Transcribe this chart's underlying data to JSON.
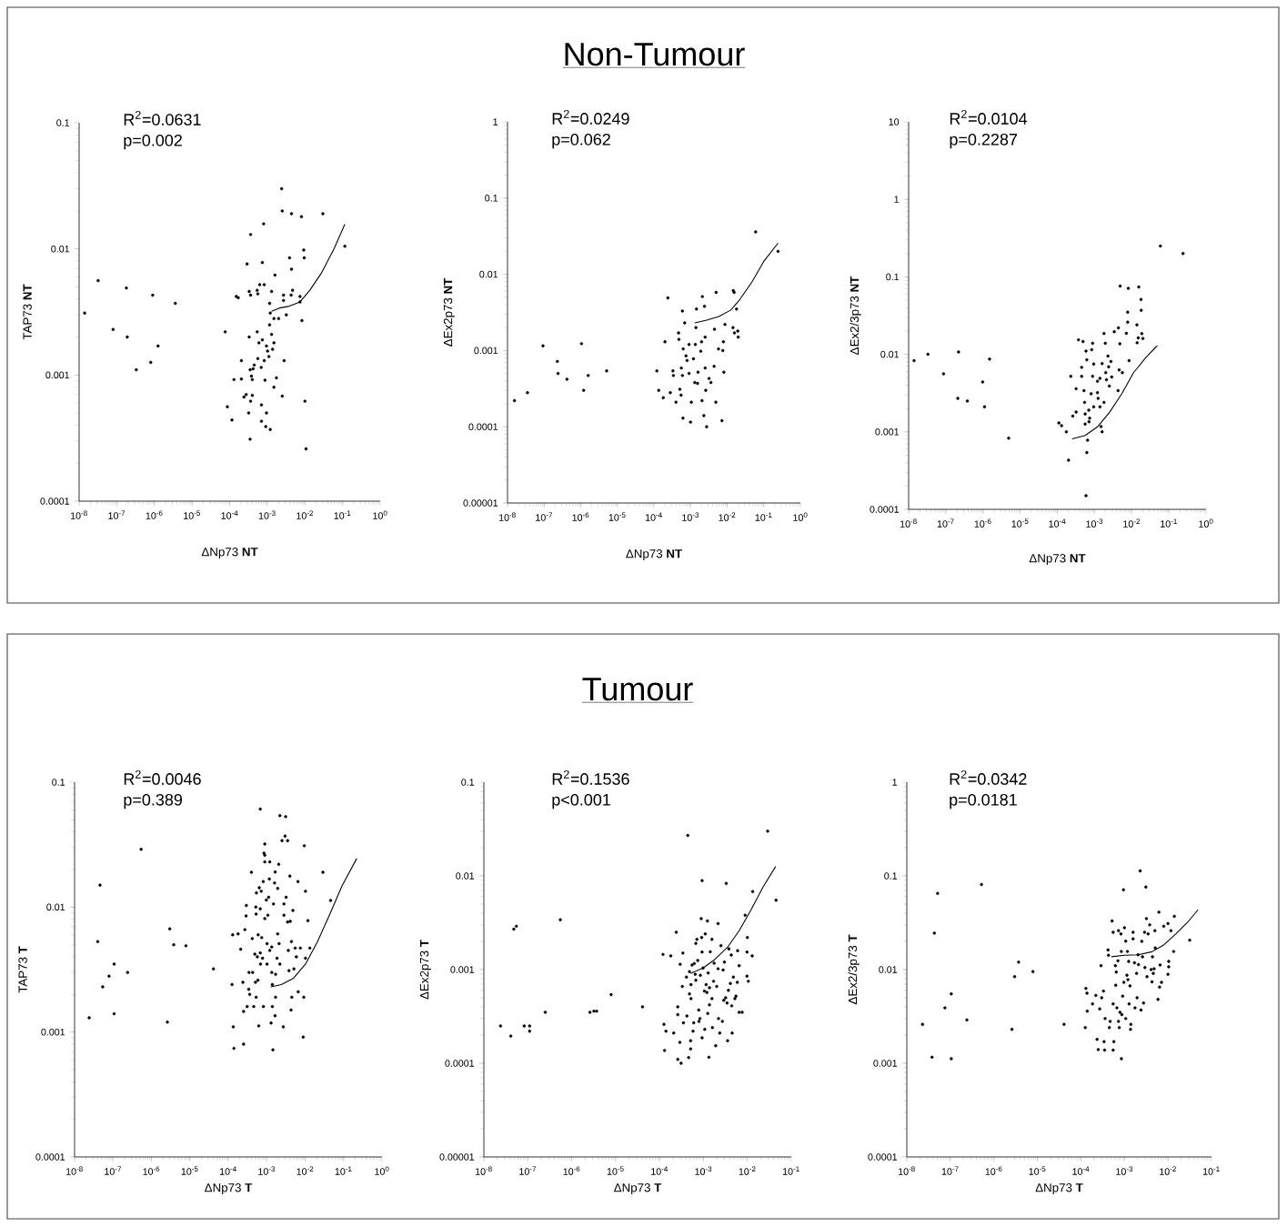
{
  "chart_data": [
    {
      "type": "scatter",
      "xlabel": "ΔNp73 **NT**",
      "ylabel": "TAP73 **NT**",
      "annotations": [
        "R$^{2}$=0.0631",
        "p=0.002"
      ],
      "log": "xy",
      "xlim": [
        1e-08,
        1
      ],
      "ylim": [
        0.0001,
        0.1
      ],
      "xticks": [
        {
          "value": 1e-08,
          "label": "10$^{-8}$"
        },
        {
          "value": 1e-07,
          "label": "10$^{-7}$"
        },
        {
          "value": 1e-06,
          "label": "10$^{-6}$"
        },
        {
          "value": 1e-05,
          "label": "10$^{-5}$"
        },
        {
          "value": 0.0001,
          "label": "10$^{-4}$"
        },
        {
          "value": 0.001,
          "label": "10$^{-3}$"
        },
        {
          "value": 0.01,
          "label": "10$^{-2}$"
        },
        {
          "value": 0.1,
          "label": "10$^{-1}$"
        },
        {
          "value": 1,
          "label": "10$^{0}$"
        }
      ],
      "yticks": [
        0.0001,
        0.001,
        0.01,
        0.1
      ],
      "series": [
        {
          "marker": "circle",
          "color": "#000000",
          "x": [
            1.4e-08,
            3.2e-08,
            8e-08,
            1.8e-07,
            1.9e-07,
            3.3e-07,
            8e-07,
            9e-07,
            1.25e-06,
            3.6e-06,
            7.6e-05,
            8.7e-05,
            0.000115,
            0.00013,
            0.00015,
            0.00017,
            0.000205,
            0.000205,
            0.00024,
            0.000275,
            0.00029,
            0.00032,
            0.00033,
            0.00033,
            0.00035,
            0.00035,
            0.00036,
            0.00036,
            0.00036,
            0.00038,
            0.0004,
            0.0004,
            0.00042,
            0.00045,
            0.00054,
            0.00056,
            0.00054,
            0.00056,
            0.00063,
            0.0006,
            0.00069,
            0.0007,
            0.0007,
            0.00074,
            0.00074,
            0.0008,
            0.00083,
            0.00087,
            0.00083,
            0.00091,
            0.00095,
            0.00095,
            0.00102,
            0.0011,
            0.00115,
            0.00115,
            0.0012,
            0.0012,
            0.0013,
            0.0013,
            0.00138,
            0.0015,
            0.0015,
            0.0015,
            0.0016,
            0.00175,
            0.002,
            0.0024,
            0.0025,
            0.0025,
            0.0027,
            0.0027,
            0.0028,
            0.0032,
            0.0039,
            0.0044,
            0.0044,
            0.0047,
            0.0043,
            0.0074,
            0.0074,
            0.0081,
            0.0083,
            0.0093,
            0.0096,
            0.01,
            0.0107,
            0.03,
            0.115
          ],
          "values": [
            0.0031,
            0.0056,
            0.0023,
            0.0049,
            0.002,
            0.0011,
            0.00126,
            0.0043,
            0.0017,
            0.0037,
            0.0022,
            0.00056,
            0.00044,
            0.00092,
            0.0042,
            0.0041,
            0.0013,
            0.00093,
            0.00067,
            0.0007,
            0.0076,
            0.0005,
            0.0046,
            0.002,
            0.0011,
            0.00031,
            0.00062,
            0.013,
            0.0043,
            0.00098,
            0.00069,
            0.00092,
            0.00112,
            0.0012,
            0.0047,
            0.0044,
            0.0022,
            0.00135,
            0.0052,
            0.0018,
            0.00115,
            0.00058,
            0.00043,
            0.0078,
            0.0019,
            0.0158,
            0.0052,
            0.00091,
            0.0013,
            0.00039,
            0.0005,
            0.0017,
            0.00155,
            0.0014,
            0.0037,
            0.0025,
            0.0031,
            0.00037,
            0.0046,
            0.0021,
            0.0016,
            0.0008,
            0.0018,
            0.0028,
            0.0062,
            0.00095,
            0.0028,
            0.03,
            0.02,
            0.00068,
            0.0043,
            0.0039,
            0.0013,
            0.003,
            0.0085,
            0.019,
            0.0069,
            0.0047,
            0.0043,
            0.0042,
            0.0038,
            0.018,
            0.0027,
            0.0098,
            0.0085,
            0.00062,
            0.00026,
            0.019,
            0.0105
          ]
        },
        {
          "type": "line",
          "color": "#000000",
          "x": [
            0.0013,
            0.0021,
            0.0036,
            0.0074,
            0.0135,
            0.028,
            0.059,
            0.115
          ],
          "values": [
            0.0032,
            0.0034,
            0.0035,
            0.0038,
            0.0047,
            0.0065,
            0.01,
            0.0157
          ]
        }
      ]
    },
    {
      "type": "scatter",
      "title": "Non-Tumour",
      "xlabel": "ΔNp73 **NT**",
      "ylabel": "ΔEx2p73 **NT**",
      "annotations": [
        "R$^{2}$=0.0249",
        "p=0.062"
      ],
      "log": "xy",
      "xlim": [
        1e-08,
        1
      ],
      "ylim": [
        1e-05,
        1
      ],
      "xticks": [
        {
          "value": 1e-08,
          "label": "10$^{-8}$"
        },
        {
          "value": 1e-07,
          "label": "10$^{-7}$"
        },
        {
          "value": 1e-06,
          "label": "10$^{-6}$"
        },
        {
          "value": 1e-05,
          "label": "10$^{-5}$"
        },
        {
          "value": 0.0001,
          "label": "10$^{-4}$"
        },
        {
          "value": 0.001,
          "label": "10$^{-3}$"
        },
        {
          "value": 0.01,
          "label": "10$^{-2}$"
        },
        {
          "value": 0.1,
          "label": "10$^{-1}$"
        },
        {
          "value": 1,
          "label": "10$^{0}$"
        }
      ],
      "yticks": [
        {
          "value": 1e-05,
          "label": "0.00001"
        },
        0.0001,
        0.001,
        0.01,
        0.1,
        1
      ],
      "series": [
        {
          "marker": "circle",
          "color": "#000000",
          "x": [
            1.55e-08,
            3.5e-08,
            9.3e-08,
            2.3e-07,
            2.4e-07,
            4.2e-07,
            1.05e-06,
            1.2e-06,
            1.6e-06,
            5.1e-06,
            0.00012,
            0.000135,
            0.00018,
            0.0002,
            0.00024,
            0.00028,
            0.00033,
            0.00034,
            0.0004,
            0.00047,
            0.00048,
            0.00051,
            0.00055,
            0.00056,
            0.0006,
            0.00062,
            0.0006,
            0.00063,
            0.00069,
            0.00075,
            0.0008,
            0.00091,
            0.00091,
            0.001,
            0.00105,
            0.0012,
            0.0013,
            0.00135,
            0.0014,
            0.00145,
            0.00155,
            0.0016,
            0.0019,
            0.002,
            0.00205,
            0.0021,
            0.0023,
            0.0024,
            0.0025,
            0.0025,
            0.0026,
            0.00275,
            0.0032,
            0.0036,
            0.0044,
            0.0045,
            0.0049,
            0.005,
            0.0058,
            0.0072,
            0.0076,
            0.0079,
            0.0081,
            0.0087,
            0.0144,
            0.0147,
            0.0155,
            0.0158,
            0.018,
            0.0195,
            0.02,
            0.06,
            0.245
          ],
          "values": [
            0.00022,
            0.00028,
            0.00115,
            0.00072,
            0.0005,
            0.00042,
            0.00123,
            0.0003,
            0.00047,
            0.00054,
            0.00054,
            0.0003,
            0.00024,
            0.0013,
            0.0049,
            0.00028,
            0.00054,
            0.00047,
            0.00021,
            0.0017,
            0.0014,
            0.00031,
            0.00026,
            0.00059,
            0.0033,
            0.00013,
            0.00047,
            0.00105,
            0.0023,
            0.00085,
            0.00074,
            0.0012,
            0.0005,
            0.000115,
            0.00021,
            0.00078,
            0.00038,
            0.0012,
            0.002,
            0.0035,
            0.00037,
            0.00052,
            0.00098,
            0.0013,
            0.00022,
            0.0051,
            0.00014,
            0.0038,
            0.0015,
            0.00059,
            0.0003,
            0.0001,
            0.00043,
            0.00038,
            0.00062,
            0.0019,
            0.00021,
            0.0058,
            0.00105,
            0.00012,
            0.001,
            0.0013,
            0.00052,
            0.0022,
            0.002,
            0.0061,
            0.0058,
            0.0017,
            0.0035,
            0.0018,
            0.0015,
            0.036,
            0.02
          ]
        },
        {
          "type": "line",
          "color": "#000000",
          "x": [
            0.0013,
            0.00275,
            0.0059,
            0.0126,
            0.0224,
            0.048,
            0.102,
            0.245
          ],
          "values": [
            0.0023,
            0.0025,
            0.0028,
            0.0034,
            0.0047,
            0.008,
            0.015,
            0.0257
          ]
        }
      ]
    },
    {
      "type": "scatter",
      "xlabel": "ΔNp73 **NT**",
      "ylabel": "ΔEx2/3p73 **NT**",
      "annotations": [
        "R$^{2}$=0.0104",
        "p=0.2287"
      ],
      "log": "xy",
      "xlim": [
        1e-08,
        1
      ],
      "ylim": [
        0.0001,
        10
      ],
      "xticks": [
        {
          "value": 1e-08,
          "label": "10$^{-8}$"
        },
        {
          "value": 1e-07,
          "label": "10$^{-7}$"
        },
        {
          "value": 1e-06,
          "label": "10$^{-6}$"
        },
        {
          "value": 1e-05,
          "label": "10$^{-5}$"
        },
        {
          "value": 0.0001,
          "label": "10$^{-4}$"
        },
        {
          "value": 0.001,
          "label": "10$^{-3}$"
        },
        {
          "value": 0.01,
          "label": "10$^{-2}$"
        },
        {
          "value": 0.1,
          "label": "10$^{-1}$"
        },
        {
          "value": 1,
          "label": "10$^{0}$"
        }
      ],
      "yticks": [
        0.0001,
        0.001,
        0.01,
        0.1,
        1,
        10
      ],
      "series": [
        {
          "marker": "circle",
          "color": "#000000",
          "x": [
            1.4e-08,
            3.3e-08,
            8.7e-08,
            2.1e-07,
            2.2e-07,
            3.8e-07,
            9.8e-07,
            1.1e-06,
            1.5e-06,
            4.9e-06,
            0.00011,
            0.00013,
            0.000175,
            0.0002,
            0.00023,
            0.00026,
            0.00032,
            0.00032,
            0.00037,
            0.00045,
            0.00045,
            0.00049,
            0.00052,
            0.00054,
            0.00056,
            0.00056,
            0.00059,
            0.00062,
            0.00059,
            0.00062,
            0.00065,
            0.0007,
            0.00071,
            0.00074,
            0.00081,
            0.00084,
            0.00089,
            0.00089,
            0.00095,
            0.00095,
            0.0012,
            0.0012,
            0.00125,
            0.0014,
            0.0014,
            0.0015,
            0.0016,
            0.0016,
            0.0018,
            0.0018,
            0.00195,
            0.002,
            0.0021,
            0.0023,
            0.0024,
            0.0025,
            0.00275,
            0.0029,
            0.0034,
            0.0043,
            0.0044,
            0.0046,
            0.0048,
            0.0049,
            0.0056,
            0.0072,
            0.0078,
            0.0078,
            0.0081,
            0.0085,
            0.0138,
            0.014,
            0.015,
            0.0155,
            0.0178,
            0.018,
            0.0187,
            0.02,
            0.059,
            0.24
          ],
          "values": [
            0.0083,
            0.01,
            0.0056,
            0.0027,
            0.0107,
            0.0025,
            0.0044,
            0.0021,
            0.0087,
            0.00083,
            0.0013,
            0.0012,
            0.001,
            0.00043,
            0.0052,
            0.0016,
            0.0018,
            0.0036,
            0.0154,
            0.0068,
            0.0052,
            0.0146,
            0.0034,
            0.0024,
            0.0017,
            0.00126,
            0.011,
            0.0085,
            0.00015,
            0.00054,
            0.00078,
            0.0019,
            0.00135,
            0.0015,
            0.0031,
            0.0115,
            0.0139,
            0.0052,
            0.0021,
            0.0075,
            0.0032,
            0.0045,
            0.0027,
            0.0049,
            0.0021,
            0.00117,
            0.001,
            0.0076,
            0.0186,
            0.0024,
            0.0139,
            0.0058,
            0.0047,
            0.0095,
            0.0069,
            0.0039,
            0.0081,
            0.0051,
            0.0196,
            0.0034,
            0.022,
            0.0063,
            0.0137,
            0.076,
            0.0058,
            0.0187,
            0.026,
            0.035,
            0.071,
            0.0083,
            0.024,
            0.0141,
            0.0163,
            0.074,
            0.051,
            0.037,
            0.0185,
            0.016,
            0.25,
            0.2
          ]
        },
        {
          "type": "line",
          "color": "#000000",
          "x": [
            0.00025,
            0.00056,
            0.0012,
            0.0025,
            0.0054,
            0.0112,
            0.024,
            0.049
          ],
          "values": [
            0.00081,
            0.0009,
            0.00116,
            0.00177,
            0.0031,
            0.0058,
            0.0091,
            0.013
          ]
        }
      ]
    },
    {
      "type": "scatter",
      "xlabel": "ΔNp73 **T**",
      "ylabel": "TAP73 **T**",
      "annotations": [
        "R$^{2}$=0.0046",
        "p=0.389"
      ],
      "log": "xy",
      "xlim": [
        1e-08,
        1
      ],
      "ylim": [
        0.0001,
        0.1
      ],
      "xticks": [
        {
          "value": 1e-08,
          "label": "10$^{-8}$"
        },
        {
          "value": 1e-07,
          "label": "10$^{-7}$"
        },
        {
          "value": 1e-06,
          "label": "10$^{-6}$"
        },
        {
          "value": 1e-05,
          "label": "10$^{-5}$"
        },
        {
          "value": 0.0001,
          "label": "10$^{-4}$"
        },
        {
          "value": 0.001,
          "label": "10$^{-3}$"
        },
        {
          "value": 0.01,
          "label": "10$^{-2}$"
        },
        {
          "value": 0.1,
          "label": "10$^{-1}$"
        },
        {
          "value": 1,
          "label": "10$^{0}$"
        }
      ],
      "yticks": [
        0.0001,
        0.001,
        0.01,
        0.1
      ],
      "series": [
        {
          "marker": "circle",
          "color": "#000000",
          "x": [
            2.4e-08,
            4e-08,
            4.6e-08,
            5.4e-08,
            7.9e-08,
            1.07e-07,
            1.07e-07,
            2.4e-07,
            5.4e-07,
            2.6e-06,
            3e-06,
            3.8e-06,
            7.9e-06,
            4.1e-05,
            0.000125,
            0.00013,
            0.000135,
            0.00014,
            0.00018,
            0.00021,
            0.00024,
            0.00025,
            0.00025,
            0.00027,
            0.00029,
            0.000295,
            0.00031,
            0.00034,
            0.000345,
            0.00036,
            0.0004,
            0.00042,
            0.00043,
            0.00046,
            0.00049,
            0.00051,
            0.00052,
            0.00053,
            0.00053,
            0.00054,
            0.00057,
            0.00059,
            0.0006,
            0.00062,
            0.00064,
            0.00068,
            0.00068,
            0.00068,
            0.00069,
            0.00072,
            0.00074,
            0.00078,
            0.00081,
            0.00082,
            0.00085,
            0.00089,
            0.00089,
            0.00089,
            0.00089,
            0.00098,
            0.00102,
            0.00102,
            0.00107,
            0.00112,
            0.00117,
            0.0012,
            0.0012,
            0.0013,
            0.00135,
            0.00135,
            0.0014,
            0.0014,
            0.00145,
            0.0015,
            0.0016,
            0.00165,
            0.00166,
            0.0017,
            0.0017,
            0.00185,
            0.00193,
            0.00193,
            0.00205,
            0.0021,
            0.0022,
            0.0022,
            0.0025,
            0.0027,
            0.0028,
            0.0028,
            0.003,
            0.0031,
            0.0032,
            0.0035,
            0.0035,
            0.00365,
            0.0038,
            0.004,
            0.0041,
            0.0043,
            0.0044,
            0.0045,
            0.0048,
            0.0051,
            0.0055,
            0.0059,
            0.0065,
            0.0066,
            0.0075,
            0.0089,
            0.0092,
            0.0095,
            0.0102,
            0.0102,
            0.0118,
            0.0132,
            0.029,
            0.046
          ],
          "values": [
            0.0013,
            0.0053,
            0.015,
            0.0023,
            0.0028,
            0.0035,
            0.0014,
            0.003,
            0.029,
            0.0012,
            0.0067,
            0.005,
            0.0049,
            0.0032,
            0.0024,
            0.006,
            0.0011,
            0.00074,
            0.0061,
            0.0046,
            0.0025,
            0.0008,
            0.00146,
            0.0066,
            0.0085,
            0.0103,
            0.0016,
            0.0022,
            0.003,
            0.002,
            0.019,
            0.0056,
            0.003,
            0.0016,
            0.0042,
            0.0025,
            0.01,
            0.0019,
            0.0088,
            0.013,
            0.004,
            0.0026,
            0.006,
            0.00112,
            0.0143,
            0.061,
            0.0097,
            0.0043,
            0.0035,
            0.0134,
            0.0057,
            0.0039,
            0.016,
            0.0016,
            0.027,
            0.032,
            0.023,
            0.026,
            0.0081,
            0.0114,
            0.0035,
            0.0051,
            0.0086,
            0.012,
            0.0168,
            0.023,
            0.0045,
            0.00118,
            0.0048,
            0.003,
            0.0024,
            0.0016,
            0.00072,
            0.0106,
            0.0156,
            0.00135,
            0.0191,
            0.0029,
            0.0019,
            0.0039,
            0.0141,
            0.0061,
            0.022,
            0.0051,
            0.054,
            0.0035,
            0.034,
            0.0011,
            0.0106,
            0.0086,
            0.037,
            0.053,
            0.012,
            0.034,
            0.0076,
            0.0045,
            0.0031,
            0.0177,
            0.0077,
            0.0015,
            0.0053,
            0.0019,
            0.0094,
            0.0032,
            0.0047,
            0.004,
            0.016,
            0.0021,
            0.0047,
            0.00091,
            0.0019,
            0.031,
            0.0134,
            0.0039,
            0.0078,
            0.0047,
            0.019,
            0.0113
          ]
        },
        {
          "type": "line",
          "color": "#000000",
          "x": [
            0.00127,
            0.0024,
            0.005,
            0.0102,
            0.021,
            0.044,
            0.091,
            0.22
          ],
          "values": [
            0.0023,
            0.0024,
            0.0027,
            0.0035,
            0.0053,
            0.0088,
            0.0148,
            0.0245
          ]
        }
      ]
    },
    {
      "type": "scatter",
      "title": "Tumour",
      "xlabel": "ΔNp73 **T**",
      "ylabel": "ΔEx2p73 **T**",
      "annotations": [
        "R$^{2}$=0.1536",
        "p<0.001"
      ],
      "log": "xy",
      "xlim": [
        1e-08,
        0.1
      ],
      "ylim": [
        1e-05,
        0.1
      ],
      "xticks": [
        {
          "value": 1e-08,
          "label": "10$^{-8}$"
        },
        {
          "value": 1e-07,
          "label": "10$^{-7}$"
        },
        {
          "value": 1e-06,
          "label": "10$^{-6}$"
        },
        {
          "value": 1e-05,
          "label": "10$^{-5}$"
        },
        {
          "value": 0.0001,
          "label": "10$^{-4}$"
        },
        {
          "value": 0.001,
          "label": "10$^{-3}$"
        },
        {
          "value": 0.01,
          "label": "10$^{-2}$"
        },
        {
          "value": 0.1,
          "label": "10$^{-1}$"
        }
      ],
      "yticks": [
        {
          "value": 1e-05,
          "label": "0.00001"
        },
        0.0001,
        0.001,
        0.01,
        0.1
      ],
      "series": [
        {
          "marker": "circle",
          "color": "#000000",
          "x": [
            2.4e-08,
            4.1e-08,
            4.8e-08,
            5.5e-08,
            8.3e-08,
            1.1e-07,
            1.1e-07,
            2.5e-07,
            5.5e-07,
            2.6e-06,
            3.2e-06,
            3.7e-06,
            7.9e-06,
            4.1e-05,
            0.00012,
            0.000126,
            0.00013,
            0.00014,
            0.00018,
            0.00021,
            0.00024,
            0.00026,
            0.00026,
            0.00026,
            0.00029,
            0.000295,
            0.00031,
            0.00033,
            0.00034,
            0.00035,
            0.00041,
            0.00042,
            0.00044,
            0.00046,
            0.00048,
            0.00048,
            0.00051,
            0.00051,
            0.00052,
            0.00052,
            0.00055,
            0.00058,
            0.0006,
            0.00062,
            0.00065,
            0.00067,
            0.00067,
            0.00071,
            0.00074,
            0.00078,
            0.00079,
            0.00083,
            0.00085,
            0.00089,
            0.00091,
            0.00093,
            0.00093,
            0.00093,
            0.00098,
            0.00105,
            0.00107,
            0.0011,
            0.00115,
            0.0012,
            0.00123,
            0.00125,
            0.00128,
            0.00133,
            0.00137,
            0.00137,
            0.00143,
            0.00156,
            0.00156,
            0.0016,
            0.0017,
            0.00175,
            0.0019,
            0.002,
            0.00215,
            0.00215,
            0.0022,
            0.00235,
            0.0025,
            0.0027,
            0.0028,
            0.0029,
            0.003,
            0.0032,
            0.0033,
            0.00345,
            0.00355,
            0.0037,
            0.0038,
            0.0041,
            0.0043,
            0.0044,
            0.0045,
            0.0048,
            0.0052,
            0.0055,
            0.0059,
            0.006,
            0.0065,
            0.0065,
            0.0076,
            0.0089,
            0.0098,
            0.01,
            0.0098,
            0.0105,
            0.0129,
            0.0132,
            0.029,
            0.045
          ],
          "values": [
            0.00025,
            0.000195,
            0.0027,
            0.0029,
            0.00025,
            0.00025,
            0.00022,
            0.00035,
            0.0034,
            0.00035,
            0.00036,
            0.00036,
            0.00054,
            0.0004,
            0.00145,
            0.00026,
            0.000137,
            0.00022,
            0.0014,
            0.00021,
            0.0025,
            0.00033,
            0.0004,
            0.00011,
            0.000167,
            0.00114,
            0.0001,
            0.00066,
            0.0015,
            0.00027,
            0.00083,
            0.00032,
            0.027,
            0.000115,
            0.00095,
            0.00055,
            0.000174,
            0.000142,
            0.00069,
            0.00049,
            0.00112,
            0.00022,
            0.00027,
            0.00116,
            0.00089,
            0.0019,
            0.00077,
            0.0021,
            0.00125,
            0.00037,
            0.00028,
            0.0003,
            0.00087,
            0.0035,
            0.0022,
            0.0089,
            0.00154,
            0.000187,
            0.00104,
            0.00059,
            0.00023,
            0.0024,
            0.00069,
            0.00057,
            0.0033,
            0.00034,
            0.00092,
            0.000116,
            0.00042,
            0.00064,
            0.00155,
            0.0021,
            0.00049,
            0.00024,
            0.00075,
            0.00117,
            0.000154,
            0.00066,
            0.00102,
            0.0031,
            0.0003,
            0.00021,
            0.0018,
            0.00028,
            0.00099,
            0.00047,
            0.0012,
            0.0005,
            0.0083,
            0.00044,
            0.000174,
            0.0006,
            0.00166,
            0.00071,
            0.00143,
            0.00041,
            0.00021,
            0.00083,
            0.00049,
            0.00052,
            0.00073,
            0.00159,
            0.0011,
            0.00035,
            0.00035,
            0.0038,
            0.00154,
            0.0022,
            0.00085,
            0.00075,
            0.0014,
            0.0068,
            0.03,
            0.0055
          ]
        },
        {
          "type": "line",
          "color": "#000000",
          "x": [
            0.00051,
            0.00098,
            0.0018,
            0.0035,
            0.0065,
            0.0123,
            0.023,
            0.044
          ],
          "values": [
            0.00091,
            0.00104,
            0.00128,
            0.00172,
            0.0026,
            0.0044,
            0.0077,
            0.0126
          ]
        }
      ]
    },
    {
      "type": "scatter",
      "xlabel": "ΔNp73 **T**",
      "ylabel": "ΔEx2/3p73 **T**",
      "annotations": [
        "R$^{2}$=0.0342",
        "p=0.0181"
      ],
      "log": "xy",
      "xlim": [
        1e-08,
        0.1
      ],
      "ylim": [
        0.0001,
        1
      ],
      "xticks": [
        {
          "value": 1e-08,
          "label": "10$^{-8}$"
        },
        {
          "value": 1e-07,
          "label": "10$^{-7}$"
        },
        {
          "value": 1e-06,
          "label": "10$^{-6}$"
        },
        {
          "value": 1e-05,
          "label": "10$^{-5}$"
        },
        {
          "value": 0.0001,
          "label": "10$^{-4}$"
        },
        {
          "value": 0.001,
          "label": "10$^{-3}$"
        },
        {
          "value": 0.01,
          "label": "10$^{-2}$"
        },
        {
          "value": 0.1,
          "label": "10$^{-1}$"
        }
      ],
      "yticks": [
        0.0001,
        0.001,
        0.01,
        0.1,
        1
      ],
      "series": [
        {
          "marker": "circle",
          "color": "#000000",
          "x": [
            2.3e-08,
            3.8e-08,
            4.3e-08,
            5.1e-08,
            7.5e-08,
            1.05e-07,
            1.05e-07,
            2.4e-07,
            5.2e-07,
            2.6e-06,
            3e-06,
            3.7e-06,
            7.9e-06,
            4.1e-05,
            0.000126,
            0.00013,
            0.000138,
            0.00014,
            0.000185,
            0.00022,
            0.000235,
            0.00025,
            0.00027,
            0.00029,
            0.0003,
            0.00033,
            0.00034,
            0.00035,
            0.00036,
            0.00042,
            0.00043,
            0.00045,
            0.00047,
            0.00052,
            0.00055,
            0.00055,
            0.00055,
            0.00057,
            0.00062,
            0.00063,
            0.00065,
            0.00067,
            0.00071,
            0.00073,
            0.00073,
            0.00076,
            0.00079,
            0.00083,
            0.00085,
            0.00085,
            0.00087,
            0.00091,
            0.00095,
            0.00097,
            0.001,
            0.00107,
            0.00107,
            0.00114,
            0.00117,
            0.0012,
            0.00125,
            0.00128,
            0.00134,
            0.00138,
            0.0014,
            0.00158,
            0.00158,
            0.0017,
            0.00175,
            0.0019,
            0.00195,
            0.00205,
            0.0021,
            0.0023,
            0.0024,
            0.0025,
            0.0026,
            0.00275,
            0.0029,
            0.00295,
            0.0031,
            0.0032,
            0.0033,
            0.0035,
            0.0038,
            0.0041,
            0.0043,
            0.0044,
            0.0046,
            0.0048,
            0.005,
            0.0051,
            0.0059,
            0.0062,
            0.0064,
            0.0066,
            0.0071,
            0.008,
            0.01,
            0.01,
            0.0104,
            0.0104,
            0.0117,
            0.0135,
            0.014,
            0.0316
          ],
          "values": [
            0.0026,
            0.00116,
            0.0245,
            0.065,
            0.0039,
            0.0055,
            0.00112,
            0.0029,
            0.081,
            0.0023,
            0.0084,
            0.012,
            0.0095,
            0.0026,
            0.0024,
            0.0063,
            0.0056,
            0.0036,
            0.0043,
            0.0053,
            0.0018,
            0.0014,
            0.0038,
            0.011,
            0.005,
            0.0059,
            0.0017,
            0.00138,
            0.003,
            0.0162,
            0.0142,
            0.0024,
            0.0028,
            0.033,
            0.025,
            0.0043,
            0.00138,
            0.0017,
            0.011,
            0.0068,
            0.0094,
            0.0039,
            0.0124,
            0.0028,
            0.026,
            0.0024,
            0.0035,
            0.024,
            0.00112,
            0.0156,
            0.0033,
            0.0052,
            0.071,
            0.0073,
            0.028,
            0.003,
            0.0201,
            0.0087,
            0.0156,
            0.0078,
            0.0122,
            0.0043,
            0.0067,
            0.0023,
            0.0026,
            0.025,
            0.0213,
            0.0118,
            0.0039,
            0.0091,
            0.005,
            0.0144,
            0.0113,
            0.113,
            0.0037,
            0.02,
            0.0137,
            0.0044,
            0.025,
            0.0105,
            0.076,
            0.035,
            0.0084,
            0.024,
            0.03,
            0.01,
            0.0074,
            0.0137,
            0.0091,
            0.0102,
            0.026,
            0.017,
            0.0048,
            0.041,
            0.0065,
            0.0112,
            0.0073,
            0.029,
            0.031,
            0.0089,
            0.0122,
            0.0107,
            0.026,
            0.0156,
            0.037,
            0.0206
          ]
        },
        {
          "type": "line",
          "color": "#000000",
          "x": [
            0.0005,
            0.001,
            0.00205,
            0.0043,
            0.0081,
            0.0151,
            0.029,
            0.049
          ],
          "values": [
            0.0137,
            0.0142,
            0.0144,
            0.0155,
            0.0184,
            0.024,
            0.0325,
            0.0435
          ]
        }
      ]
    }
  ]
}
